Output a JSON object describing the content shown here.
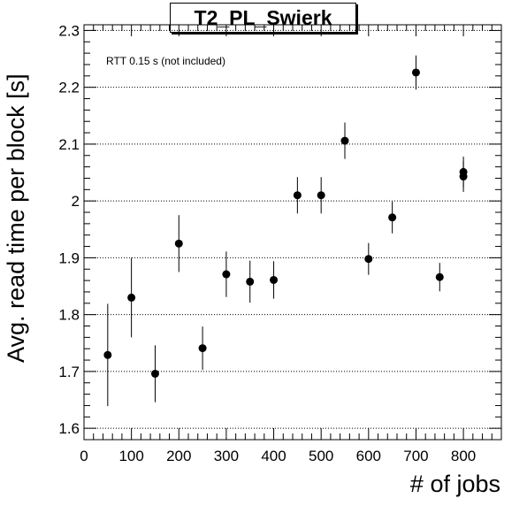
{
  "chart_data": {
    "type": "scatter",
    "title": "T2_PL_Swierk",
    "xlabel": "# of jobs",
    "ylabel": "Avg. read time per block [s]",
    "annotation": "RTT 0.15 s (not included)",
    "xlim": [
      0,
      880
    ],
    "ylim": [
      1.58,
      2.31
    ],
    "xticks": [
      0,
      100,
      200,
      300,
      400,
      500,
      600,
      700,
      800
    ],
    "yticks": [
      1.6,
      1.7,
      1.8,
      1.9,
      2.0,
      2.1,
      2.2,
      2.3
    ],
    "ytick_labels": [
      "1.6",
      "1.7",
      "1.8",
      "1.9",
      "2",
      "2.1",
      "2.2",
      "2.3"
    ],
    "grid_y": true,
    "grid_x": false,
    "series": [
      {
        "x": [
          50,
          100,
          150,
          200,
          250,
          300,
          350,
          400,
          450,
          500,
          550,
          600,
          650,
          700,
          750,
          800,
          800
        ],
        "y": [
          1.729,
          1.83,
          1.696,
          1.925,
          1.741,
          1.871,
          1.858,
          1.861,
          2.01,
          2.01,
          2.106,
          1.898,
          1.971,
          2.226,
          1.866,
          2.051,
          2.043
        ],
        "yerr": [
          0.09,
          0.07,
          0.05,
          0.05,
          0.038,
          0.04,
          0.037,
          0.033,
          0.032,
          0.032,
          0.032,
          0.028,
          0.028,
          0.03,
          0.025,
          0.027,
          0.027
        ]
      }
    ]
  }
}
